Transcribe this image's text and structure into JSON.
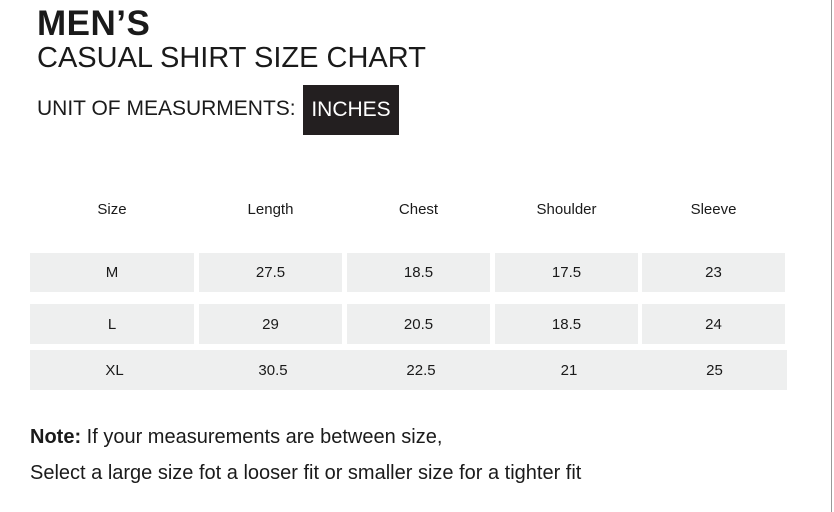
{
  "title": "MEN’S",
  "subtitle": "CASUAL SHIRT SIZE CHART",
  "unit_label": "UNIT OF MEASURMENTS:",
  "unit_value": "INCHES",
  "table": {
    "headers": [
      "Size",
      "Length",
      "Chest",
      "Shoulder",
      "Sleeve"
    ],
    "rows": [
      [
        "M",
        "27.5",
        "18.5",
        "17.5",
        "23"
      ],
      [
        "L",
        "29",
        "20.5",
        "18.5",
        "24"
      ],
      [
        "XL",
        "30.5",
        "22.5",
        "21",
        "25"
      ]
    ]
  },
  "note": {
    "label": "Note:",
    "line1": " If your measurements are between size,",
    "line2": "Select a large size fot a looser fit or smaller size for a tighter fit"
  }
}
